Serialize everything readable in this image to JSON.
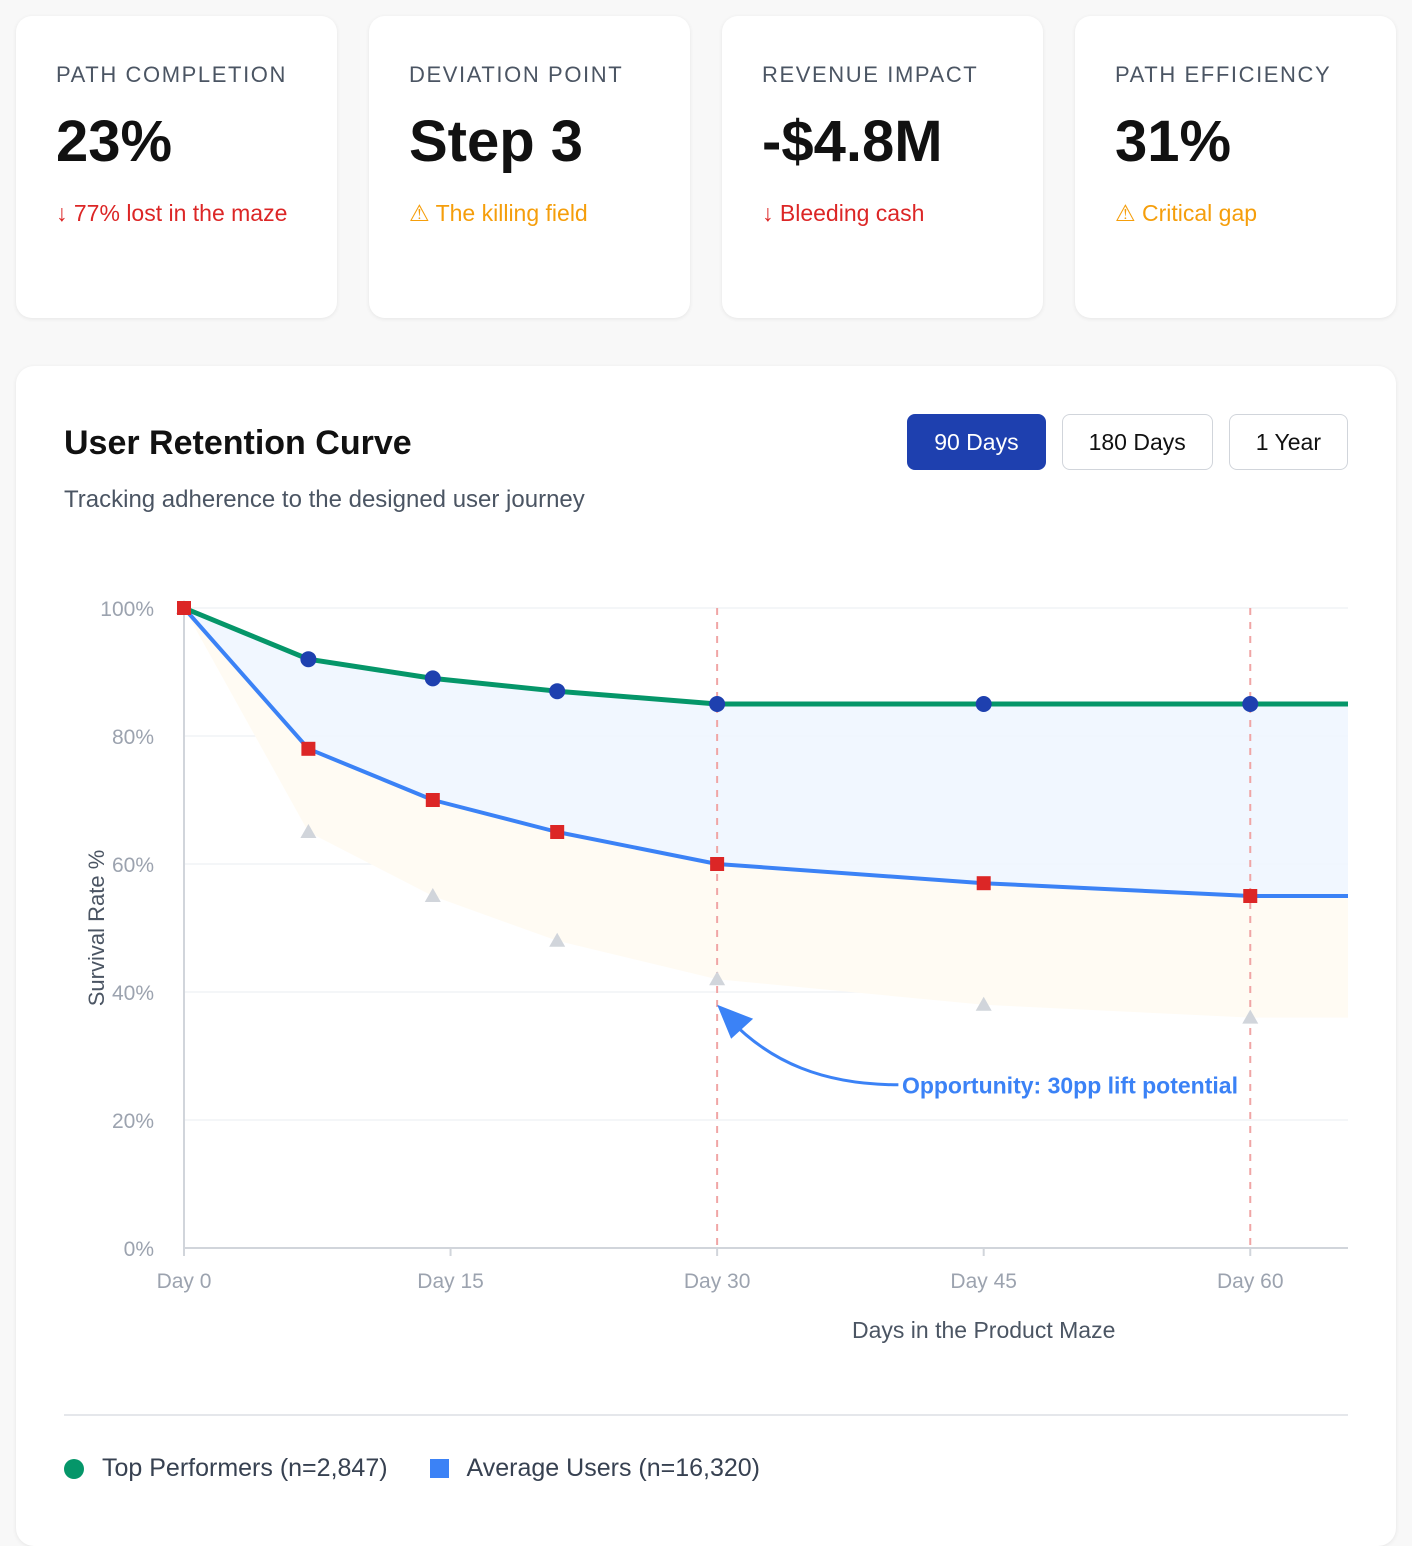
{
  "kpis": [
    {
      "label": "PATH COMPLETION",
      "value": "23%",
      "note": "↓ 77% lost in the maze",
      "tone": "red"
    },
    {
      "label": "DEVIATION POINT",
      "value": "Step 3",
      "note": "⚠ The killing field",
      "tone": "amber"
    },
    {
      "label": "REVENUE IMPACT",
      "value": "-$4.8M",
      "note": "↓ Bleeding cash",
      "tone": "red"
    },
    {
      "label": "PATH EFFICIENCY",
      "value": "31%",
      "note": "⚠ Critical gap",
      "tone": "amber"
    }
  ],
  "range_buttons": [
    {
      "label": "90 Days",
      "active": true
    },
    {
      "label": "180 Days",
      "active": false
    },
    {
      "label": "1 Year",
      "active": false
    }
  ],
  "legend": {
    "top": "Top Performers (n=2,847)",
    "avg": "Average Users (n=16,320)"
  },
  "chart_data": {
    "type": "line",
    "title": "User Retention Curve",
    "subtitle": "Tracking adherence to the designed user journey",
    "xlabel": "Days in the Product Maze",
    "ylabel": "Survival Rate %",
    "xlim": [
      0,
      65.5
    ],
    "ylim": [
      0,
      100
    ],
    "x_ticks": [
      0,
      15,
      30,
      45,
      60
    ],
    "x_tick_labels": [
      "Day 0",
      "Day 15",
      "Day 30",
      "Day 45",
      "Day 60"
    ],
    "y_ticks": [
      0,
      20,
      40,
      60,
      80,
      100
    ],
    "y_tick_labels": [
      "0%",
      "20%",
      "40%",
      "60%",
      "80%",
      "100%"
    ],
    "grid": true,
    "series": [
      {
        "name": "Top Performers (n=2,847)",
        "color": "#059669",
        "marker": "circle",
        "marker_color": "#1e40af",
        "x": [
          0,
          7,
          14,
          21,
          30,
          45,
          60,
          65.5
        ],
        "y": [
          100,
          92,
          89,
          87,
          85,
          85,
          85,
          85
        ],
        "marker_x": [
          7,
          14,
          21,
          30,
          45,
          60
        ]
      },
      {
        "name": "Average Users (n=16,320)",
        "color": "#3b82f6",
        "marker": "square",
        "marker_color": "#dc2626",
        "x": [
          0,
          7,
          14,
          21,
          30,
          45,
          60,
          65.5
        ],
        "y": [
          100,
          78,
          70,
          65,
          60,
          57,
          55,
          55
        ],
        "marker_x": [
          0,
          7,
          14,
          21,
          30,
          45,
          60
        ]
      },
      {
        "name": "",
        "color": "#d1d5db",
        "marker": "triangle",
        "x": [
          0,
          7,
          14,
          21,
          30,
          45,
          60,
          65.5
        ],
        "y": [
          100,
          65,
          55,
          48,
          42,
          38,
          36,
          36
        ],
        "marker_x": [
          0,
          7,
          14,
          21,
          30,
          45,
          60
        ]
      }
    ],
    "vertical_markers": [
      30,
      60
    ],
    "annotation": {
      "text": "Opportunity: 30pp lift potential",
      "color": "#3b82f6"
    }
  }
}
